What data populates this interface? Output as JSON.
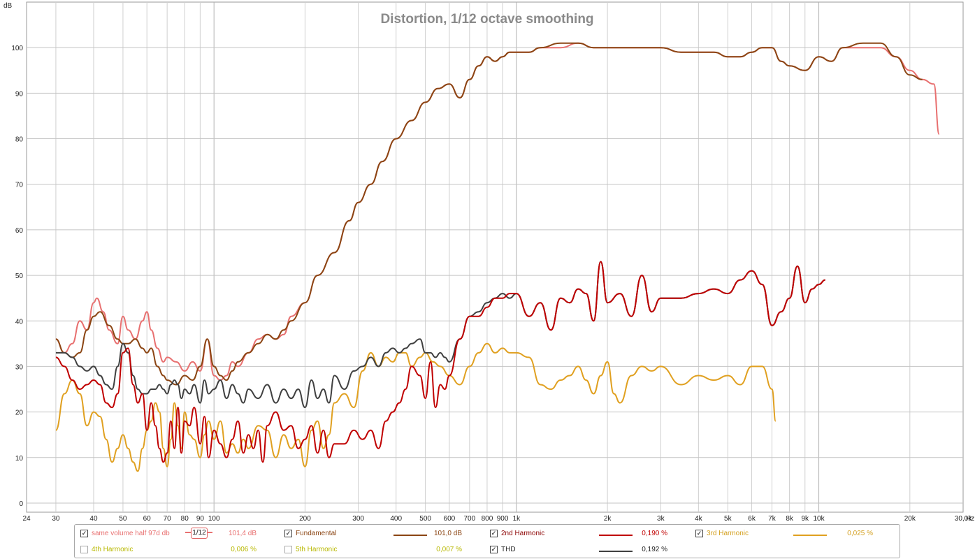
{
  "chart_data": {
    "type": "line",
    "title": "Distortion, 1/12 octave smoothing",
    "xlabel": "Hz",
    "ylabel": "dB",
    "x_scale": "log",
    "xlim": [
      24,
      30000
    ],
    "ylim": [
      -2,
      110
    ],
    "grid": true,
    "x_ticks": [
      {
        "v": 24,
        "label": "24"
      },
      {
        "v": 30,
        "label": "30"
      },
      {
        "v": 40,
        "label": "40"
      },
      {
        "v": 50,
        "label": "50"
      },
      {
        "v": 60,
        "label": "60"
      },
      {
        "v": 70,
        "label": "70"
      },
      {
        "v": 80,
        "label": "80"
      },
      {
        "v": 90,
        "label": "90"
      },
      {
        "v": 100,
        "label": "100"
      },
      {
        "v": 200,
        "label": "200"
      },
      {
        "v": 300,
        "label": "300"
      },
      {
        "v": 400,
        "label": "400"
      },
      {
        "v": 500,
        "label": "500"
      },
      {
        "v": 600,
        "label": "600"
      },
      {
        "v": 700,
        "label": "700"
      },
      {
        "v": 800,
        "label": "800"
      },
      {
        "v": 900,
        "label": "900"
      },
      {
        "v": 1000,
        "label": "1k"
      },
      {
        "v": 2000,
        "label": "2k"
      },
      {
        "v": 3000,
        "label": "3k"
      },
      {
        "v": 4000,
        "label": "4k"
      },
      {
        "v": 5000,
        "label": "5k"
      },
      {
        "v": 6000,
        "label": "6k"
      },
      {
        "v": 7000,
        "label": "7k"
      },
      {
        "v": 8000,
        "label": "8k"
      },
      {
        "v": 9000,
        "label": "9k"
      },
      {
        "v": 10000,
        "label": "10k"
      },
      {
        "v": 20000,
        "label": "20k"
      },
      {
        "v": 30000,
        "label": "30,0k"
      }
    ],
    "y_ticks": [
      0,
      10,
      20,
      30,
      40,
      50,
      60,
      70,
      80,
      90,
      100
    ],
    "series": [
      {
        "name": "same volume half 97d db",
        "color": "#e87070",
        "x": [
          30,
          32,
          34,
          36,
          38,
          40,
          41,
          43,
          45,
          48,
          50,
          52,
          55,
          58,
          60,
          62,
          65,
          68,
          70,
          75,
          80,
          85,
          90,
          95,
          100,
          105,
          110,
          115,
          120,
          130,
          140,
          150,
          160,
          170,
          180,
          200,
          220,
          250,
          280,
          300,
          330,
          360,
          400,
          450,
          500,
          550,
          600,
          650,
          700,
          750,
          800,
          850,
          900,
          950,
          1000,
          1100,
          1200,
          1400,
          1600,
          1800,
          2000,
          2200,
          2500,
          3000,
          3500,
          4000,
          4500,
          5000,
          5500,
          6000,
          6500,
          7000,
          7500,
          8000,
          9000,
          10000,
          11000,
          12000,
          14000,
          16000,
          18000,
          20000,
          22000,
          24000,
          25000
        ],
        "y": [
          36,
          33,
          35,
          40,
          38,
          44,
          45,
          42,
          38,
          35,
          41,
          38,
          36,
          40,
          42,
          38,
          34,
          31,
          32,
          31,
          29,
          31,
          29,
          36,
          28,
          27,
          28,
          31,
          30,
          33,
          36,
          37,
          36,
          37,
          41,
          44,
          50,
          55,
          62,
          66,
          70,
          75,
          80,
          84,
          88,
          91,
          92,
          89,
          93,
          96,
          98,
          97,
          98,
          99,
          99,
          99,
          100,
          100,
          101,
          100,
          100,
          100,
          100,
          100,
          99,
          99,
          99,
          98,
          98,
          99,
          100,
          100,
          97,
          96,
          95,
          98,
          97,
          100,
          100,
          100,
          98,
          95,
          93,
          92,
          81
        ]
      },
      {
        "name": "Fundamental",
        "color": "#8b4513",
        "x": [
          30,
          32,
          34,
          36,
          38,
          40,
          42,
          45,
          48,
          50,
          52,
          55,
          58,
          60,
          62,
          65,
          68,
          70,
          75,
          80,
          85,
          90,
          95,
          100,
          105,
          110,
          115,
          120,
          130,
          140,
          150,
          160,
          170,
          180,
          200,
          220,
          250,
          280,
          300,
          330,
          360,
          400,
          450,
          500,
          550,
          600,
          650,
          700,
          750,
          800,
          850,
          900,
          950,
          1000,
          1100,
          1200,
          1400,
          1600,
          1800,
          2000,
          2200,
          2500,
          3000,
          3500,
          4000,
          4500,
          5000,
          5500,
          6000,
          6500,
          7000,
          7500,
          8000,
          9000,
          10000,
          11000,
          12000,
          14000,
          16000,
          18000,
          20000,
          22000
        ],
        "y": [
          36,
          33,
          32,
          33,
          38,
          41,
          42,
          39,
          36,
          35,
          35,
          36,
          34,
          33,
          34,
          30,
          28,
          27,
          26,
          28,
          27,
          30,
          36,
          30,
          28,
          27,
          29,
          31,
          33,
          35,
          37,
          36,
          38,
          40,
          44,
          50,
          55,
          62,
          66,
          70,
          75,
          80,
          84,
          88,
          91,
          92,
          89,
          93,
          96,
          98,
          97,
          98,
          99,
          99,
          99,
          100,
          101,
          101,
          100,
          100,
          100,
          100,
          100,
          99,
          99,
          99,
          98,
          98,
          99,
          100,
          100,
          97,
          96,
          95,
          98,
          97,
          100,
          101,
          101,
          98,
          94,
          93
        ]
      },
      {
        "name": "2nd Harmonic",
        "color": "#c00000",
        "x": [
          30,
          32,
          34,
          36,
          38,
          40,
          42,
          44,
          46,
          48,
          50,
          52,
          54,
          56,
          58,
          60,
          62,
          64,
          66,
          68,
          70,
          72,
          74,
          76,
          78,
          80,
          83,
          86,
          90,
          93,
          96,
          100,
          105,
          110,
          115,
          120,
          125,
          130,
          135,
          140,
          145,
          150,
          160,
          170,
          180,
          190,
          200,
          210,
          220,
          230,
          240,
          250,
          270,
          290,
          310,
          330,
          350,
          370,
          390,
          410,
          430,
          450,
          480,
          500,
          520,
          540,
          560,
          580,
          600,
          650,
          700,
          750,
          800,
          850,
          900,
          950,
          1000,
          1100,
          1200,
          1300,
          1400,
          1500,
          1600,
          1700,
          1800,
          1900,
          2000,
          2200,
          2400,
          2600,
          2800,
          3000,
          3500,
          4000,
          4500,
          5000,
          5500,
          6000,
          6500,
          7000,
          7500,
          8000,
          8500,
          9000,
          9500,
          10000,
          10500
        ],
        "y": [
          32,
          30,
          27,
          25,
          26,
          27,
          26,
          22,
          21,
          24,
          33,
          34,
          26,
          22,
          24,
          16,
          22,
          17,
          12,
          9,
          11,
          18,
          12,
          21,
          11,
          18,
          17,
          21,
          13,
          19,
          10,
          16,
          13,
          10,
          14,
          18,
          11,
          15,
          12,
          16,
          9,
          17,
          20,
          16,
          17,
          12,
          14,
          17,
          11,
          16,
          10,
          13,
          13,
          16,
          14,
          16,
          12,
          18,
          20,
          22,
          25,
          30,
          28,
          23,
          31,
          21,
          26,
          25,
          28,
          36,
          41,
          41,
          43,
          45,
          45,
          46,
          46,
          41,
          44,
          38,
          45,
          44,
          47,
          46,
          40,
          53,
          44,
          46,
          41,
          50,
          42,
          45,
          45,
          46,
          47,
          46,
          49,
          51,
          48,
          39,
          42,
          45,
          52,
          44,
          47,
          48,
          49
        ]
      },
      {
        "name": "3rd Harmonic",
        "color": "#e0a020",
        "x": [
          30,
          32,
          34,
          36,
          38,
          40,
          42,
          44,
          46,
          48,
          50,
          52,
          54,
          56,
          58,
          60,
          62,
          64,
          66,
          68,
          70,
          72,
          74,
          76,
          78,
          80,
          83,
          86,
          90,
          93,
          96,
          100,
          105,
          110,
          115,
          120,
          125,
          130,
          140,
          150,
          160,
          170,
          180,
          190,
          200,
          210,
          220,
          230,
          240,
          250,
          270,
          290,
          310,
          330,
          350,
          370,
          390,
          410,
          430,
          450,
          480,
          500,
          530,
          560,
          600,
          650,
          700,
          750,
          800,
          850,
          900,
          950,
          1000,
          1100,
          1200,
          1300,
          1400,
          1500,
          1600,
          1700,
          1800,
          1900,
          2000,
          2100,
          2200,
          2400,
          2600,
          2800,
          3000,
          3500,
          4000,
          4500,
          5000,
          5500,
          6000,
          6500,
          7000,
          7200
        ],
        "y": [
          16,
          24,
          27,
          24,
          17,
          20,
          19,
          14,
          9,
          12,
          15,
          12,
          9,
          7,
          12,
          16,
          18,
          22,
          20,
          12,
          8,
          14,
          22,
          17,
          12,
          20,
          15,
          14,
          10,
          15,
          18,
          14,
          18,
          11,
          13,
          11,
          14,
          12,
          17,
          16,
          10,
          15,
          12,
          14,
          8,
          16,
          18,
          12,
          15,
          22,
          24,
          21,
          29,
          33,
          30,
          32,
          31,
          33,
          33,
          30,
          32,
          33,
          31,
          30,
          28,
          26,
          30,
          33,
          35,
          33,
          34,
          33,
          33,
          32,
          26,
          25,
          27,
          28,
          30,
          27,
          24,
          28,
          31,
          24,
          22,
          28,
          30,
          29,
          30,
          26,
          28,
          27,
          28,
          26,
          30,
          30,
          25,
          18
        ]
      },
      {
        "name": "THD",
        "color": "#404040",
        "x": [
          30,
          32,
          34,
          36,
          38,
          40,
          42,
          44,
          46,
          48,
          50,
          52,
          54,
          56,
          58,
          60,
          62,
          64,
          66,
          68,
          70,
          72,
          74,
          76,
          78,
          80,
          83,
          86,
          90,
          93,
          96,
          100,
          105,
          110,
          115,
          120,
          125,
          130,
          140,
          150,
          160,
          170,
          180,
          190,
          200,
          210,
          220,
          230,
          240,
          250,
          270,
          290,
          310,
          330,
          350,
          370,
          390,
          410,
          430,
          450,
          480,
          500,
          520,
          540,
          560,
          580,
          600,
          650,
          700,
          750,
          800,
          850,
          900,
          950,
          1000,
          1100,
          1200,
          1300,
          1400,
          1500,
          1600,
          1700,
          1800,
          1900,
          2000,
          2200,
          2400,
          2600,
          2800,
          3000,
          3500,
          4000,
          4500,
          5000,
          5500,
          6000,
          6500,
          7000,
          7500,
          8000,
          8500,
          9000,
          9500,
          10000,
          10500
        ],
        "y": [
          33,
          33,
          32,
          30,
          29,
          30,
          28,
          26,
          25,
          30,
          35,
          33,
          28,
          25,
          24,
          24,
          25,
          25,
          26,
          25,
          24,
          26,
          27,
          26,
          23,
          25,
          24,
          26,
          22,
          27,
          24,
          25,
          27,
          23,
          26,
          24,
          22,
          25,
          23,
          26,
          22,
          25,
          23,
          25,
          21,
          27,
          23,
          25,
          22,
          28,
          25,
          29,
          30,
          32,
          30,
          33,
          34,
          33,
          34,
          35,
          36,
          33,
          33,
          32,
          33,
          32,
          31,
          36,
          41,
          42,
          44,
          45,
          46,
          45,
          46,
          41,
          44,
          38,
          45,
          44,
          47,
          46,
          40,
          53,
          44,
          46,
          41,
          50,
          42,
          45,
          45,
          46,
          47,
          46,
          49,
          51,
          48,
          39,
          42,
          45,
          52,
          44,
          47,
          48,
          49
        ]
      }
    ],
    "hidden_series": [
      "4th Harmonic",
      "5th Harmonic"
    ]
  },
  "legend": {
    "row1": [
      {
        "label": "same volume half 97d db",
        "checked": true,
        "value": "101,4 dB",
        "color": "#e87070",
        "smoothing": "1/12"
      },
      {
        "label": "Fundamental",
        "checked": true,
        "value": "101,0 dB",
        "color": "#8b4513"
      },
      {
        "label": "2nd Harmonic",
        "checked": true,
        "value": "0,190 %",
        "color": "#c00000"
      },
      {
        "label": "3rd Harmonic",
        "checked": true,
        "value": "0,025 %",
        "color": "#e0a020"
      }
    ],
    "row2": [
      {
        "label": "4th Harmonic",
        "checked": false,
        "value": "0,006 %",
        "color": "#c0c000"
      },
      {
        "label": "5th Harmonic",
        "checked": false,
        "value": "0,007 %",
        "color": "#c0c000"
      },
      {
        "label": "THD",
        "checked": true,
        "value": "0,192 %",
        "color": "#404040"
      }
    ]
  }
}
